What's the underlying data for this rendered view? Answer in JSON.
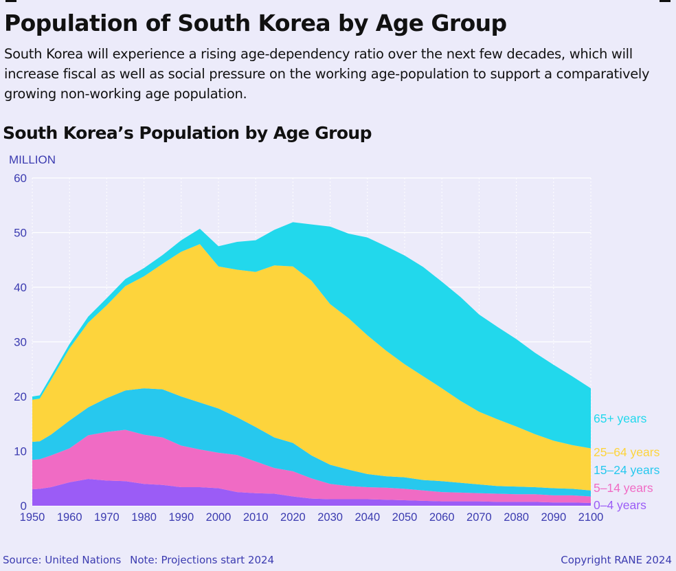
{
  "headline": "Population of South Korea by Age Group",
  "dek": "South Korea will experience a rising age-dependency ratio over the next few decades, which will increase fiscal as well as social pressure on the working age-population to support a comparatively growing non-working age population.",
  "footer": {
    "source": "Source: United Nations",
    "note": "Note: Projections start 2024",
    "copyright": "Copyright RANE 2024"
  },
  "colors": {
    "background": "#ecebfa",
    "grid": "#ffffff",
    "axis_text": "#3b3bb0"
  },
  "chart_data": {
    "type": "area",
    "stacked": true,
    "title": "South Korea’s Population by Age Group",
    "ylabel": "MILLION",
    "xlabel": "",
    "ylim": [
      0,
      60
    ],
    "xlim": [
      1950,
      2100
    ],
    "yticks": [
      0,
      10,
      20,
      30,
      40,
      50,
      60
    ],
    "xticks": [
      1950,
      1960,
      1970,
      1980,
      1990,
      2000,
      2010,
      2020,
      2030,
      2040,
      2050,
      2060,
      2070,
      2080,
      2090,
      2100
    ],
    "grid": true,
    "legend": "right (labels at end of stack)",
    "x": [
      1950,
      1952,
      1955,
      1960,
      1965,
      1970,
      1975,
      1980,
      1985,
      1990,
      1995,
      2000,
      2005,
      2010,
      2015,
      2020,
      2025,
      2030,
      2035,
      2040,
      2045,
      2050,
      2055,
      2060,
      2065,
      2070,
      2075,
      2080,
      2085,
      2090,
      2095,
      2100
    ],
    "series": [
      {
        "name": "0–4 years",
        "color": "#9b5cf6",
        "values": [
          3.0,
          3.1,
          3.4,
          4.3,
          4.9,
          4.6,
          4.5,
          4.0,
          3.8,
          3.4,
          3.4,
          3.2,
          2.5,
          2.3,
          2.2,
          1.7,
          1.3,
          1.2,
          1.2,
          1.2,
          1.1,
          1.0,
          0.9,
          0.8,
          0.8,
          0.8,
          0.7,
          0.7,
          0.7,
          0.6,
          0.6,
          0.5
        ]
      },
      {
        "name": "5–14 years",
        "color": "#f06bc4",
        "values": [
          5.4,
          5.4,
          5.8,
          6.2,
          8.0,
          8.9,
          9.4,
          9.0,
          8.7,
          7.6,
          6.9,
          6.5,
          6.8,
          5.8,
          4.7,
          4.6,
          3.7,
          2.8,
          2.4,
          2.2,
          2.2,
          2.1,
          1.9,
          1.7,
          1.6,
          1.5,
          1.5,
          1.4,
          1.4,
          1.3,
          1.3,
          1.2
        ]
      },
      {
        "name": "15–24 years",
        "color": "#27c8ee",
        "values": [
          3.3,
          3.3,
          3.8,
          5.1,
          5.1,
          6.2,
          7.2,
          8.5,
          8.8,
          9.0,
          8.6,
          8.1,
          6.9,
          6.3,
          5.6,
          5.2,
          4.2,
          3.5,
          3.0,
          2.4,
          2.1,
          2.1,
          1.9,
          2.0,
          1.8,
          1.6,
          1.4,
          1.4,
          1.3,
          1.3,
          1.2,
          1.1
        ]
      },
      {
        "name": "25–64 years",
        "color": "#fdd43c",
        "values": [
          7.7,
          7.8,
          10.0,
          13.2,
          15.5,
          17.0,
          19.1,
          20.5,
          23.0,
          26.5,
          29.0,
          26.0,
          27.0,
          28.4,
          31.5,
          32.3,
          32.0,
          29.4,
          27.7,
          25.4,
          23.0,
          20.7,
          19.0,
          17.0,
          15.0,
          13.3,
          12.2,
          11.0,
          9.7,
          8.7,
          8.0,
          7.7
        ]
      },
      {
        "name": "65+ years",
        "color": "#22d8ec",
        "values": [
          0.6,
          0.6,
          0.7,
          0.8,
          1.1,
          1.3,
          1.3,
          1.5,
          1.6,
          2.1,
          2.8,
          3.7,
          5.1,
          5.8,
          6.5,
          8.1,
          10.3,
          14.2,
          15.5,
          17.9,
          19.1,
          19.9,
          20.0,
          19.5,
          19.0,
          17.8,
          16.9,
          16.0,
          14.9,
          13.9,
          12.6,
          11.0
        ]
      }
    ]
  }
}
